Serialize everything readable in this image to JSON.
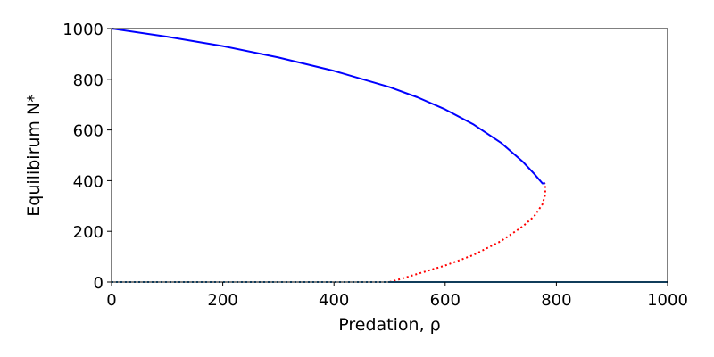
{
  "chart_data": {
    "type": "line",
    "xlabel": "Predation, ρ",
    "ylabel": "Equilibirum N*",
    "xlim": [
      0,
      1000
    ],
    "ylim": [
      0,
      1000
    ],
    "xticks": [
      0,
      200,
      400,
      600,
      800,
      1000
    ],
    "yticks": [
      0,
      200,
      400,
      600,
      800,
      1000
    ],
    "grid": false,
    "series": [
      {
        "style": "solid",
        "color": "#0000ff",
        "points": [
          [
            0,
            1000
          ],
          [
            100,
            968
          ],
          [
            200,
            931
          ],
          [
            300,
            886
          ],
          [
            400,
            833
          ],
          [
            500,
            769
          ],
          [
            550,
            729
          ],
          [
            600,
            681
          ],
          [
            650,
            623
          ],
          [
            700,
            550
          ],
          [
            740,
            474
          ],
          [
            760,
            427
          ],
          [
            775,
            389
          ],
          [
            780,
            390
          ]
        ]
      },
      {
        "style": "dotted",
        "color": "#ff0000",
        "points": [
          [
            500,
            0
          ],
          [
            520,
            12
          ],
          [
            550,
            32
          ],
          [
            600,
            65
          ],
          [
            650,
            106
          ],
          [
            700,
            161
          ],
          [
            740,
            220
          ],
          [
            760,
            259
          ],
          [
            775,
            307
          ],
          [
            780,
            345
          ],
          [
            780,
            390
          ]
        ]
      },
      {
        "style": "dotted",
        "color": "#1f77b4",
        "points": [
          [
            0,
            0
          ],
          [
            500,
            0
          ]
        ]
      },
      {
        "style": "solid",
        "color": "#1f77b4",
        "points": [
          [
            500,
            0
          ],
          [
            1000,
            0
          ]
        ]
      }
    ]
  }
}
